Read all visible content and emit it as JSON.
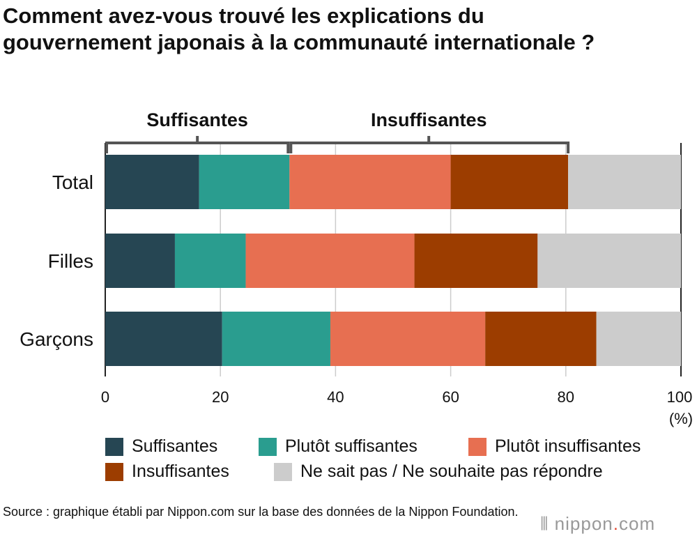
{
  "title": "Comment avez-vous trouvé les explications du gouvernement japonais à la communauté internationale ?",
  "source": "Source : graphique établi par Nippon.com sur la base des données de la Nippon Foundation.",
  "logo": "nippon.com",
  "chart_data": {
    "type": "bar",
    "orientation": "horizontal-stacked",
    "categories": [
      "Total",
      "Filles",
      "Garçons"
    ],
    "series": [
      {
        "name": "Suffisantes",
        "color": "#264653",
        "values": [
          16.3,
          12.1,
          20.3
        ]
      },
      {
        "name": "Plutôt suffisantes",
        "color": "#2a9d8f",
        "values": [
          15.7,
          12.3,
          18.8
        ]
      },
      {
        "name": "Plutôt insuffisantes",
        "color": "#e76f51",
        "values": [
          28.0,
          29.3,
          26.9
        ]
      },
      {
        "name": "Insuffisantes",
        "color": "#9c3d00",
        "values": [
          20.4,
          21.4,
          19.3
        ]
      },
      {
        "name": "Ne sait pas / Ne souhaite pas répondre",
        "color": "#cccccc",
        "values": [
          19.6,
          24.9,
          14.7
        ]
      }
    ],
    "xlim": [
      0,
      100
    ],
    "xticks": [
      "0",
      "20",
      "40",
      "60",
      "80",
      "100"
    ],
    "xunit": "(%)",
    "grid": true,
    "group_labels": [
      "Suffisantes",
      "Insuffisantes"
    ],
    "legend": "bottom"
  }
}
